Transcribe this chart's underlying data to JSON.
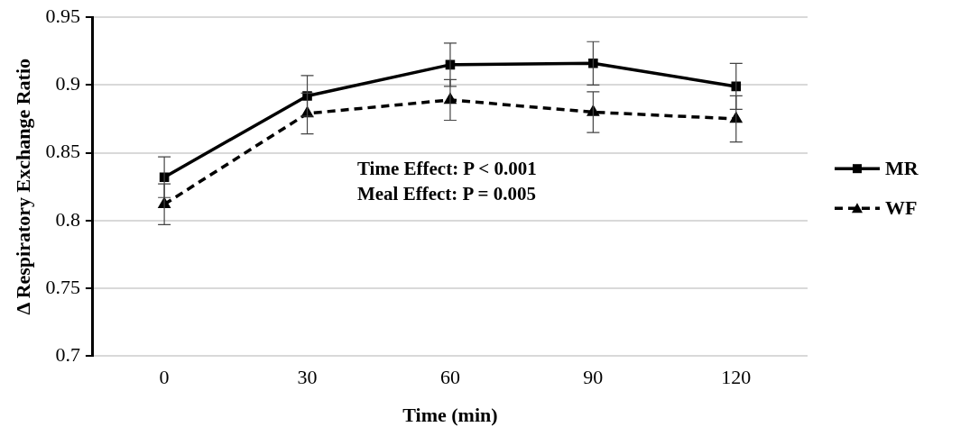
{
  "chart_data": {
    "type": "line",
    "xlabel": "Time (min)",
    "ylabel": "Δ Respiratory Exchange Ratio",
    "categories": [
      "0",
      "30",
      "60",
      "90",
      "120"
    ],
    "series": [
      {
        "name": "MR",
        "color": "#000000",
        "marker": "square",
        "line_style": "solid",
        "values": [
          0.832,
          0.892,
          0.915,
          0.916,
          0.899
        ],
        "errors": [
          0.015,
          0.015,
          0.016,
          0.016,
          0.017
        ]
      },
      {
        "name": "WF",
        "color": "#000000",
        "marker": "triangle",
        "line_style": "dashed",
        "values": [
          0.812,
          0.879,
          0.889,
          0.88,
          0.875
        ],
        "errors": [
          0.015,
          0.015,
          0.015,
          0.015,
          0.017
        ]
      }
    ],
    "ylim": [
      0.7,
      0.95
    ],
    "yticks": [
      0.7,
      0.75,
      0.8,
      0.85,
      0.9,
      0.95
    ],
    "grid": "y",
    "legend": "right",
    "annotations": [
      "Time Effect: P < 0.001",
      "Meal Effect: P = 0.005"
    ]
  }
}
